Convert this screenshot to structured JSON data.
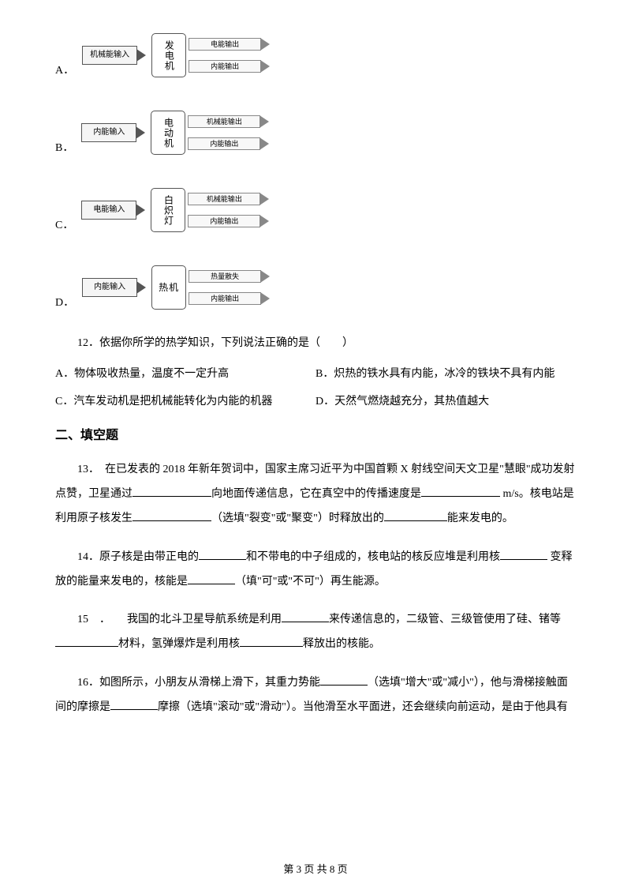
{
  "diagrams": {
    "a": {
      "label": "A．",
      "input": "机械能输入",
      "center": "发电机",
      "out1": "电能输出",
      "out2": "内能输出"
    },
    "b": {
      "label": "B．",
      "input": "内能输入",
      "center": "电动机",
      "out1": "机械能输出",
      "out2": "内能输出"
    },
    "c": {
      "label": "C．",
      "input": "电能输入",
      "center": "白炽灯",
      "out1": "机械能输出",
      "out2": "内能输出"
    },
    "d": {
      "label": "D．",
      "input": "内能输入",
      "center": "热机",
      "out1": "热量散失",
      "out2": "内能输出"
    }
  },
  "q12": {
    "text": "12．依据你所学的热学知识，下列说法正确的是（　　）",
    "a": "A．物体吸收热量，温度不一定升高",
    "b": "B．炽热的铁水具有内能，冰冷的铁块不具有内能",
    "c": "C．汽车发动机是把机械能转化为内能的机器",
    "d": "D．天然气燃烧越充分，其热值越大"
  },
  "section2": "二、填空题",
  "q13": {
    "p1": "13．　在已发表的 2018 年新年贺词中，国家主席习近平为中国首颗 X 射线空间天文卫星\"慧眼\"成功发射点赞，卫星通过",
    "p2": "向地面传递信息，它在真空中的传播速度是",
    "p3": " m/s。核电站是利用原子核发生",
    "p4": "（选填\"裂变\"或\"聚变\"）时释放出的",
    "p5": "能来发电的。"
  },
  "q14": {
    "p1": "14．原子核是由带正电的",
    "p2": "和不带电的中子组成的，核电站的核反应堆是利用核",
    "p3": " 变释放的能量来发电的，核能是",
    "p4": "（填\"可\"或\"不可\"）再生能源。"
  },
  "q15": {
    "p1": "15　．　　我国的北斗卫星导航系统是利用",
    "p2": "来传递信息的，二级管、三级管使用了硅、锗等",
    "p3": "材料，氢弹爆炸是利用核",
    "p4": "释放出的核能。"
  },
  "q16": {
    "p1": "16．如图所示，小朋友从滑梯上滑下，其重力势能",
    "p2": "（选填\"增大\"或\"减小\"），他与滑梯接触面间的摩擦是",
    "p3": "摩擦（选填\"滚动\"或\"滑动\"）。当他滑至水平面进，还会继续向前运动，是由于他具有"
  },
  "footer": "第 3 页 共 8 页"
}
